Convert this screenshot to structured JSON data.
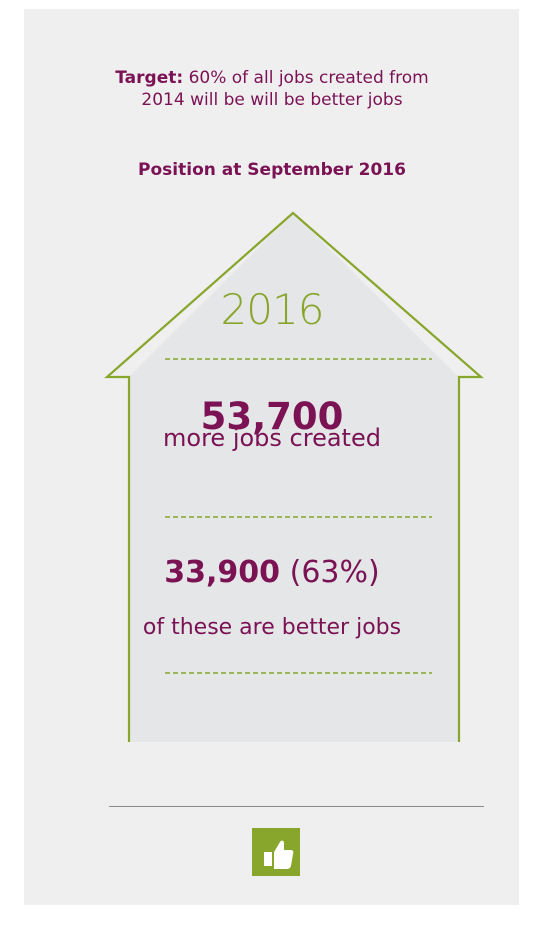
{
  "target": {
    "label": "Target:",
    "line1": " 60% of all jobs created from",
    "line2": "2014 will be  will be better jobs"
  },
  "position_title": "Position at September 2016",
  "house": {
    "year": "2016",
    "jobs_created_value": "53,700",
    "jobs_created_label": "more jobs created",
    "better_jobs_value": "33,900",
    "better_jobs_percent": "(63%)",
    "better_jobs_label": "of these are better jobs"
  },
  "icon": "thumbs-up-icon",
  "colors": {
    "background": "#efefef",
    "house_fill": "#e5e6e8",
    "accent_green": "#88a52c",
    "text_purple": "#7a1254"
  }
}
